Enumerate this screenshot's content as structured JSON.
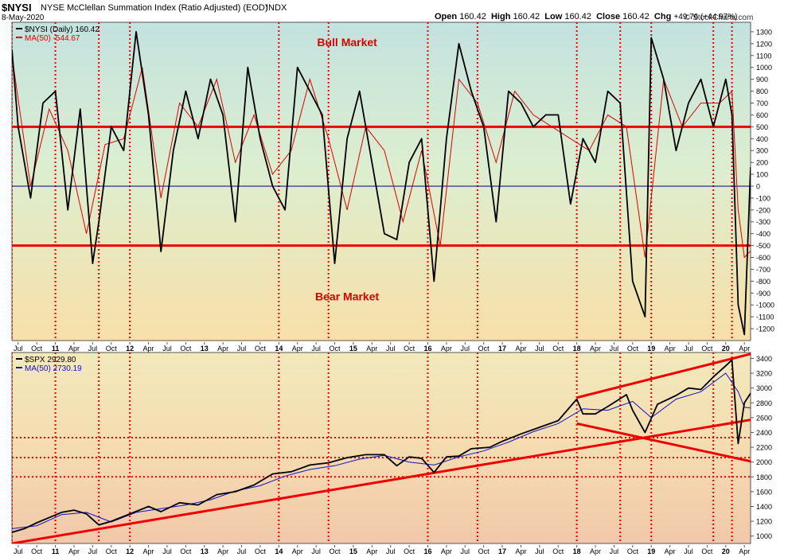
{
  "header": {
    "symbol": "$NYSI",
    "description": "NYSE McClellan Summation Index (Ratio Adjusted) (EOD)",
    "exchange": "INDX",
    "date": "8-May-2020",
    "ohlc": {
      "open_label": "Open",
      "open": "160.42",
      "high_label": "High",
      "high": "160.42",
      "low_label": "Low",
      "low": "160.42",
      "close_label": "Close",
      "close": "160.42",
      "chg_label": "Chg",
      "chg": "+49.76 (+44.97%)"
    },
    "credit": "© StockCharts.com"
  },
  "chart_data": [
    {
      "type": "line",
      "panel": "upper",
      "legend": [
        {
          "name": "$NYSI (Daily) 160.42",
          "color": "#000000"
        },
        {
          "name": "MA(50) -544.67",
          "color": "#dd0000"
        }
      ],
      "ylim": [
        -1300,
        1380
      ],
      "yticks": [
        1300,
        1200,
        1100,
        1000,
        900,
        800,
        700,
        600,
        500,
        400,
        300,
        200,
        100,
        0,
        -100,
        -200,
        -300,
        -400,
        -500,
        -600,
        -700,
        -800,
        -900,
        -1000,
        -1100,
        -1200
      ],
      "hlines": [
        500,
        0,
        -500
      ],
      "annotations": [
        {
          "text": "Bull Market",
          "x": "2014-12",
          "y": 1180
        },
        {
          "text": "Bear Market",
          "x": "2014-12",
          "y": -960
        }
      ],
      "series": [
        {
          "name": "$NYSI",
          "x": [
            "2010-06",
            "2010-07",
            "2010-09",
            "2010-11",
            "2011-01",
            "2011-03",
            "2011-05",
            "2011-07",
            "2011-08",
            "2011-10",
            "2011-12",
            "2012-02",
            "2012-04",
            "2012-06",
            "2012-08",
            "2012-10",
            "2012-12",
            "2013-02",
            "2013-04",
            "2013-06",
            "2013-08",
            "2013-10",
            "2013-12",
            "2014-02",
            "2014-04",
            "2014-06",
            "2014-08",
            "2014-10",
            "2014-12",
            "2015-02",
            "2015-04",
            "2015-06",
            "2015-08",
            "2015-10",
            "2015-12",
            "2016-02",
            "2016-04",
            "2016-06",
            "2016-08",
            "2016-10",
            "2016-12",
            "2017-02",
            "2017-04",
            "2017-06",
            "2017-08",
            "2017-10",
            "2017-12",
            "2018-02",
            "2018-04",
            "2018-06",
            "2018-08",
            "2018-10",
            "2018-12",
            "2019-01",
            "2019-03",
            "2019-05",
            "2019-07",
            "2019-09",
            "2019-11",
            "2020-01",
            "2020-02",
            "2020-03",
            "2020-04",
            "2020-05"
          ],
          "y": [
            1150,
            500,
            -100,
            700,
            800,
            -200,
            650,
            -650,
            -300,
            500,
            300,
            1300,
            600,
            -550,
            300,
            800,
            400,
            900,
            600,
            -300,
            1000,
            400,
            0,
            -200,
            1000,
            800,
            600,
            -650,
            400,
            800,
            200,
            -400,
            -450,
            200,
            400,
            -800,
            400,
            1200,
            800,
            500,
            -300,
            800,
            700,
            500,
            600,
            600,
            -150,
            400,
            200,
            800,
            700,
            -800,
            -1100,
            1250,
            900,
            300,
            700,
            900,
            500,
            900,
            600,
            -1000,
            -1250,
            160
          ]
        },
        {
          "name": "MA(50)",
          "x": [
            "2010-06",
            "2010-09",
            "2010-12",
            "2011-03",
            "2011-06",
            "2011-09",
            "2011-12",
            "2012-03",
            "2012-06",
            "2012-09",
            "2012-12",
            "2013-03",
            "2013-06",
            "2013-09",
            "2013-12",
            "2014-03",
            "2014-06",
            "2014-09",
            "2014-12",
            "2015-03",
            "2015-06",
            "2015-09",
            "2015-12",
            "2016-03",
            "2016-06",
            "2016-09",
            "2016-12",
            "2017-03",
            "2017-06",
            "2017-09",
            "2017-12",
            "2018-03",
            "2018-06",
            "2018-09",
            "2018-12",
            "2019-03",
            "2019-06",
            "2019-09",
            "2019-12",
            "2020-02",
            "2020-03",
            "2020-04",
            "2020-05"
          ],
          "y": [
            1100,
            0,
            650,
            300,
            -400,
            350,
            400,
            1000,
            -100,
            700,
            500,
            900,
            200,
            600,
            100,
            300,
            900,
            400,
            -200,
            500,
            300,
            -300,
            300,
            -500,
            900,
            700,
            200,
            800,
            600,
            500,
            400,
            300,
            600,
            500,
            -600,
            900,
            500,
            700,
            700,
            800,
            -200,
            -600,
            -545
          ]
        }
      ]
    },
    {
      "type": "line",
      "panel": "lower",
      "legend": [
        {
          "name": "$SPX 2929.80",
          "color": "#000000"
        },
        {
          "name": "MA(50) 2730.19",
          "color": "#1010cc"
        }
      ],
      "ylim": [
        900,
        3480
      ],
      "yticks": [
        3400,
        3200,
        3000,
        2800,
        2600,
        2400,
        2200,
        2000,
        1800,
        1600,
        1400,
        1200,
        1000
      ],
      "hlines_dotted": [
        2330,
        2060,
        1800
      ],
      "trendlines": [
        {
          "from": [
            "2010-06",
            900
          ],
          "to": [
            "2020-05",
            2570
          ]
        },
        {
          "from": [
            "2018-01",
            2870
          ],
          "to": [
            "2020-05",
            3460
          ]
        },
        {
          "from": [
            "2018-01",
            2520
          ],
          "to": [
            "2020-05",
            2010
          ]
        }
      ],
      "series": [
        {
          "name": "$SPX",
          "x": [
            "2010-06",
            "2010-08",
            "2010-10",
            "2010-12",
            "2011-02",
            "2011-04",
            "2011-06",
            "2011-08",
            "2011-10",
            "2012-01",
            "2012-04",
            "2012-06",
            "2012-09",
            "2012-12",
            "2013-03",
            "2013-06",
            "2013-09",
            "2013-12",
            "2014-03",
            "2014-06",
            "2014-09",
            "2014-12",
            "2015-03",
            "2015-06",
            "2015-08",
            "2015-10",
            "2015-12",
            "2016-02",
            "2016-04",
            "2016-06",
            "2016-08",
            "2016-11",
            "2017-01",
            "2017-04",
            "2017-07",
            "2017-10",
            "2018-01",
            "2018-02",
            "2018-04",
            "2018-06",
            "2018-09",
            "2018-10",
            "2018-12",
            "2019-02",
            "2019-05",
            "2019-07",
            "2019-09",
            "2019-11",
            "2020-01",
            "2020-02",
            "2020-03",
            "2020-04",
            "2020-05"
          ],
          "y": [
            1050,
            1100,
            1180,
            1250,
            1320,
            1350,
            1300,
            1150,
            1200,
            1300,
            1400,
            1330,
            1450,
            1420,
            1560,
            1600,
            1690,
            1840,
            1870,
            1960,
            1990,
            2060,
            2100,
            2100,
            1950,
            2070,
            2050,
            1860,
            2070,
            2080,
            2180,
            2200,
            2280,
            2380,
            2470,
            2560,
            2850,
            2650,
            2650,
            2750,
            2910,
            2700,
            2400,
            2780,
            2900,
            3000,
            2980,
            3150,
            3300,
            3380,
            2250,
            2800,
            2930
          ]
        },
        {
          "name": "MA(50)",
          "x": [
            "2010-06",
            "2010-10",
            "2011-02",
            "2011-06",
            "2011-10",
            "2012-02",
            "2012-06",
            "2012-10",
            "2013-02",
            "2013-06",
            "2013-10",
            "2014-02",
            "2014-06",
            "2014-10",
            "2015-02",
            "2015-06",
            "2015-10",
            "2016-02",
            "2016-06",
            "2016-10",
            "2017-02",
            "2017-06",
            "2017-10",
            "2018-02",
            "2018-06",
            "2018-10",
            "2019-01",
            "2019-05",
            "2019-09",
            "2020-01",
            "2020-03",
            "2020-04",
            "2020-05"
          ],
          "y": [
            1100,
            1140,
            1290,
            1320,
            1190,
            1320,
            1370,
            1420,
            1490,
            1610,
            1680,
            1810,
            1900,
            1950,
            2040,
            2090,
            2000,
            1960,
            2070,
            2150,
            2270,
            2410,
            2520,
            2720,
            2700,
            2820,
            2600,
            2850,
            2950,
            3200,
            2950,
            2740,
            2730
          ]
        }
      ]
    }
  ],
  "time_axis": {
    "range": [
      "2010-06",
      "2020-05"
    ],
    "ticks": [
      {
        "x": "2010-07",
        "label": "Jul"
      },
      {
        "x": "2010-10",
        "label": "Oct"
      },
      {
        "x": "2011-01",
        "label": "11"
      },
      {
        "x": "2011-04",
        "label": "Apr"
      },
      {
        "x": "2011-07",
        "label": "Jul"
      },
      {
        "x": "2011-10",
        "label": "Oct"
      },
      {
        "x": "2012-01",
        "label": "12"
      },
      {
        "x": "2012-04",
        "label": "Apr"
      },
      {
        "x": "2012-07",
        "label": "Jul"
      },
      {
        "x": "2012-10",
        "label": "Oct"
      },
      {
        "x": "2013-01",
        "label": "13"
      },
      {
        "x": "2013-04",
        "label": "Apr"
      },
      {
        "x": "2013-07",
        "label": "Jul"
      },
      {
        "x": "2013-10",
        "label": "Oct"
      },
      {
        "x": "2014-01",
        "label": "14"
      },
      {
        "x": "2014-04",
        "label": "Apr"
      },
      {
        "x": "2014-07",
        "label": "Jul"
      },
      {
        "x": "2014-10",
        "label": "Oct"
      },
      {
        "x": "2015-01",
        "label": "15"
      },
      {
        "x": "2015-04",
        "label": "Apr"
      },
      {
        "x": "2015-07",
        "label": "Jul"
      },
      {
        "x": "2015-10",
        "label": "Oct"
      },
      {
        "x": "2016-01",
        "label": "16"
      },
      {
        "x": "2016-04",
        "label": "Apr"
      },
      {
        "x": "2016-07",
        "label": "Jul"
      },
      {
        "x": "2016-10",
        "label": "Oct"
      },
      {
        "x": "2017-01",
        "label": "17"
      },
      {
        "x": "2017-04",
        "label": "Apr"
      },
      {
        "x": "2017-07",
        "label": "Jul"
      },
      {
        "x": "2017-10",
        "label": "Oct"
      },
      {
        "x": "2018-01",
        "label": "18"
      },
      {
        "x": "2018-04",
        "label": "Apr"
      },
      {
        "x": "2018-07",
        "label": "Jul"
      },
      {
        "x": "2018-10",
        "label": "Oct"
      },
      {
        "x": "2019-01",
        "label": "19"
      },
      {
        "x": "2019-04",
        "label": "Apr"
      },
      {
        "x": "2019-07",
        "label": "Jul"
      },
      {
        "x": "2019-10",
        "label": "Oct"
      },
      {
        "x": "2020-01",
        "label": "20"
      },
      {
        "x": "2020-04",
        "label": "Apr"
      }
    ],
    "vlines_dotted": [
      "2010-06",
      "2011-01",
      "2011-08",
      "2012-01",
      "2014-01",
      "2014-09",
      "2016-01",
      "2016-09",
      "2018-01",
      "2018-08",
      "2019-01",
      "2019-11",
      "2020-02"
    ]
  },
  "colors": {
    "price": "#000000",
    "ma_upper": "#dd0000",
    "ma_lower": "#1010cc",
    "guide": "#ee0000",
    "zero_line": "#000080",
    "annotation": "#dd0000"
  }
}
